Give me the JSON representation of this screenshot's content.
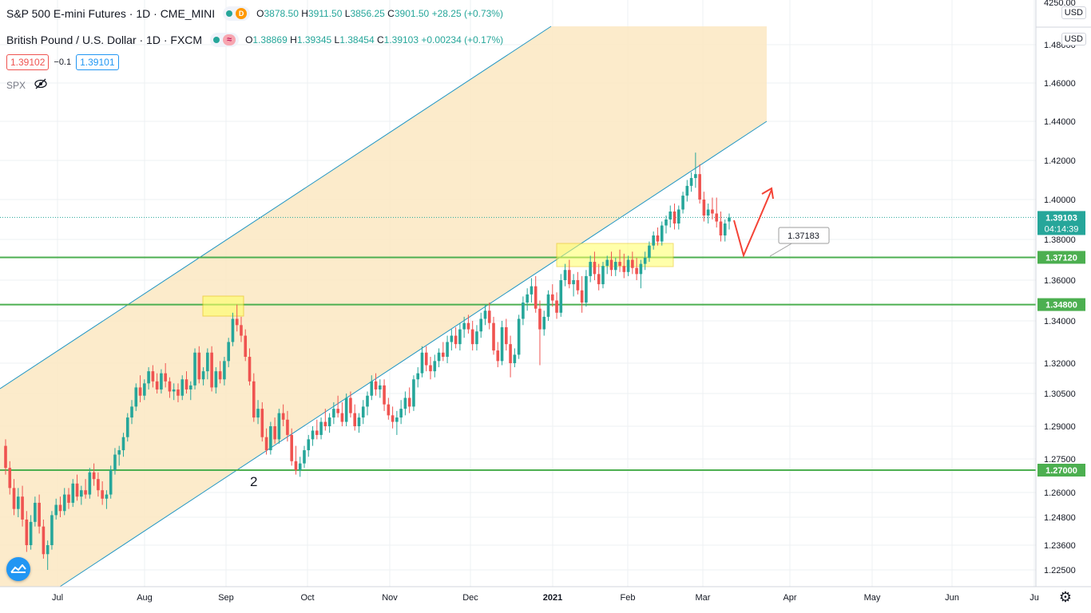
{
  "legend": {
    "row1": {
      "title": "S&P 500 E-mini Futures · 1D · CME_MINI",
      "badge": "D",
      "o_label": "O",
      "o": "3878.50",
      "h_label": "H",
      "h": "3911.50",
      "l_label": "L",
      "l": "3856.25",
      "c_label": "C",
      "c": "3901.50",
      "change": "+28.25 (+0.73%)"
    },
    "row2": {
      "title": "British Pound / U.S. Dollar · 1D · FXCM",
      "badge": "≈",
      "o_label": "O",
      "o": "1.38869",
      "h_label": "H",
      "h": "1.39345",
      "l_label": "L",
      "l": "1.38454",
      "c_label": "C",
      "c": "1.39103",
      "change": "+0.00234 (+0.17%)"
    },
    "sell_price": "1.39102",
    "spread": "−0.1",
    "buy_price": "1.39101",
    "spx_label": "SPX"
  },
  "axis": {
    "currency_top": "USD",
    "currency_main": "USD",
    "top_tick": "4250.00",
    "price_ticks": [
      "1.48000",
      "1.46000",
      "1.44000",
      "1.42000",
      "1.40000",
      "1.38000",
      "1.36000",
      "1.34000",
      "1.32000",
      "1.30500",
      "1.29000",
      "1.27500",
      "1.26000",
      "1.24800",
      "1.23600",
      "1.22500"
    ],
    "time_ticks": [
      "Jul",
      "Aug",
      "Sep",
      "Oct",
      "Nov",
      "Dec",
      "2021",
      "Feb",
      "Mar",
      "Apr",
      "May",
      "Jun",
      "Ju"
    ]
  },
  "chart_data": {
    "type": "candlestick",
    "symbol": "GBPUSD",
    "current_price": "1.39103",
    "countdown": "04:14:39",
    "levels": [
      {
        "value": 1.3712,
        "label": "1.37120",
        "color": "#4caf50"
      },
      {
        "value": 1.348,
        "label": "1.34800",
        "color": "#4caf50"
      },
      {
        "value": 1.27,
        "label": "1.27000",
        "color": "#4caf50"
      }
    ],
    "callout": "1.37183",
    "wave_label": "2",
    "colors": {
      "up": "#26a69a",
      "down": "#ef5350",
      "channel": "#fbe8c2",
      "channel_line": "#2196c4",
      "level": "#4caf50",
      "highlight": "#ffff66",
      "arrow": "#f44336"
    },
    "candles": [
      {
        "o": 1.281,
        "h": 1.284,
        "l": 1.268,
        "c": 1.271
      },
      {
        "o": 1.271,
        "h": 1.274,
        "l": 1.259,
        "c": 1.262
      },
      {
        "o": 1.262,
        "h": 1.266,
        "l": 1.249,
        "c": 1.252
      },
      {
        "o": 1.252,
        "h": 1.262,
        "l": 1.248,
        "c": 1.258
      },
      {
        "o": 1.258,
        "h": 1.263,
        "l": 1.244,
        "c": 1.247
      },
      {
        "o": 1.247,
        "h": 1.251,
        "l": 1.233,
        "c": 1.236
      },
      {
        "o": 1.236,
        "h": 1.249,
        "l": 1.234,
        "c": 1.246
      },
      {
        "o": 1.246,
        "h": 1.258,
        "l": 1.244,
        "c": 1.255
      },
      {
        "o": 1.255,
        "h": 1.259,
        "l": 1.241,
        "c": 1.244
      },
      {
        "o": 1.244,
        "h": 1.247,
        "l": 1.23,
        "c": 1.232
      },
      {
        "o": 1.232,
        "h": 1.238,
        "l": 1.225,
        "c": 1.236
      },
      {
        "o": 1.236,
        "h": 1.251,
        "l": 1.234,
        "c": 1.249
      },
      {
        "o": 1.249,
        "h": 1.257,
        "l": 1.247,
        "c": 1.254
      },
      {
        "o": 1.254,
        "h": 1.258,
        "l": 1.248,
        "c": 1.251
      },
      {
        "o": 1.251,
        "h": 1.262,
        "l": 1.249,
        "c": 1.259
      },
      {
        "o": 1.259,
        "h": 1.262,
        "l": 1.252,
        "c": 1.255
      },
      {
        "o": 1.255,
        "h": 1.266,
        "l": 1.253,
        "c": 1.264
      },
      {
        "o": 1.264,
        "h": 1.268,
        "l": 1.256,
        "c": 1.258
      },
      {
        "o": 1.258,
        "h": 1.263,
        "l": 1.254,
        "c": 1.261
      },
      {
        "o": 1.261,
        "h": 1.266,
        "l": 1.257,
        "c": 1.259
      },
      {
        "o": 1.259,
        "h": 1.271,
        "l": 1.257,
        "c": 1.269
      },
      {
        "o": 1.269,
        "h": 1.273,
        "l": 1.263,
        "c": 1.266
      },
      {
        "o": 1.266,
        "h": 1.269,
        "l": 1.258,
        "c": 1.261
      },
      {
        "o": 1.261,
        "h": 1.265,
        "l": 1.254,
        "c": 1.257
      },
      {
        "o": 1.257,
        "h": 1.261,
        "l": 1.252,
        "c": 1.259
      },
      {
        "o": 1.259,
        "h": 1.272,
        "l": 1.257,
        "c": 1.27
      },
      {
        "o": 1.27,
        "h": 1.28,
        "l": 1.268,
        "c": 1.277
      },
      {
        "o": 1.277,
        "h": 1.281,
        "l": 1.272,
        "c": 1.279
      },
      {
        "o": 1.279,
        "h": 1.287,
        "l": 1.276,
        "c": 1.285
      },
      {
        "o": 1.285,
        "h": 1.296,
        "l": 1.283,
        "c": 1.294
      },
      {
        "o": 1.294,
        "h": 1.302,
        "l": 1.291,
        "c": 1.299
      },
      {
        "o": 1.299,
        "h": 1.31,
        "l": 1.297,
        "c": 1.308
      },
      {
        "o": 1.308,
        "h": 1.314,
        "l": 1.301,
        "c": 1.304
      },
      {
        "o": 1.304,
        "h": 1.312,
        "l": 1.302,
        "c": 1.31
      },
      {
        "o": 1.31,
        "h": 1.318,
        "l": 1.307,
        "c": 1.316
      },
      {
        "o": 1.316,
        "h": 1.319,
        "l": 1.308,
        "c": 1.311
      },
      {
        "o": 1.311,
        "h": 1.315,
        "l": 1.305,
        "c": 1.307
      },
      {
        "o": 1.307,
        "h": 1.317,
        "l": 1.305,
        "c": 1.315
      },
      {
        "o": 1.315,
        "h": 1.32,
        "l": 1.308,
        "c": 1.311
      },
      {
        "o": 1.311,
        "h": 1.313,
        "l": 1.303,
        "c": 1.306
      },
      {
        "o": 1.306,
        "h": 1.31,
        "l": 1.302,
        "c": 1.307
      },
      {
        "o": 1.307,
        "h": 1.31,
        "l": 1.301,
        "c": 1.304
      },
      {
        "o": 1.304,
        "h": 1.314,
        "l": 1.302,
        "c": 1.312
      },
      {
        "o": 1.312,
        "h": 1.316,
        "l": 1.305,
        "c": 1.307
      },
      {
        "o": 1.307,
        "h": 1.311,
        "l": 1.302,
        "c": 1.309
      },
      {
        "o": 1.309,
        "h": 1.327,
        "l": 1.307,
        "c": 1.325
      },
      {
        "o": 1.325,
        "h": 1.328,
        "l": 1.31,
        "c": 1.312
      },
      {
        "o": 1.312,
        "h": 1.318,
        "l": 1.309,
        "c": 1.316
      },
      {
        "o": 1.316,
        "h": 1.327,
        "l": 1.312,
        "c": 1.325
      },
      {
        "o": 1.325,
        "h": 1.328,
        "l": 1.306,
        "c": 1.308
      },
      {
        "o": 1.308,
        "h": 1.318,
        "l": 1.305,
        "c": 1.316
      },
      {
        "o": 1.316,
        "h": 1.321,
        "l": 1.31,
        "c": 1.312
      },
      {
        "o": 1.312,
        "h": 1.323,
        "l": 1.309,
        "c": 1.321
      },
      {
        "o": 1.321,
        "h": 1.332,
        "l": 1.318,
        "c": 1.33
      },
      {
        "o": 1.33,
        "h": 1.344,
        "l": 1.328,
        "c": 1.341
      },
      {
        "o": 1.341,
        "h": 1.348,
        "l": 1.335,
        "c": 1.338
      },
      {
        "o": 1.338,
        "h": 1.342,
        "l": 1.33,
        "c": 1.333
      },
      {
        "o": 1.333,
        "h": 1.336,
        "l": 1.321,
        "c": 1.323
      },
      {
        "o": 1.323,
        "h": 1.327,
        "l": 1.309,
        "c": 1.311
      },
      {
        "o": 1.311,
        "h": 1.315,
        "l": 1.292,
        "c": 1.294
      },
      {
        "o": 1.294,
        "h": 1.302,
        "l": 1.291,
        "c": 1.298
      },
      {
        "o": 1.298,
        "h": 1.301,
        "l": 1.283,
        "c": 1.285
      },
      {
        "o": 1.285,
        "h": 1.289,
        "l": 1.277,
        "c": 1.279
      },
      {
        "o": 1.279,
        "h": 1.292,
        "l": 1.277,
        "c": 1.29
      },
      {
        "o": 1.29,
        "h": 1.294,
        "l": 1.282,
        "c": 1.284
      },
      {
        "o": 1.284,
        "h": 1.298,
        "l": 1.282,
        "c": 1.296
      },
      {
        "o": 1.296,
        "h": 1.3,
        "l": 1.29,
        "c": 1.293
      },
      {
        "o": 1.293,
        "h": 1.297,
        "l": 1.283,
        "c": 1.286
      },
      {
        "o": 1.286,
        "h": 1.289,
        "l": 1.272,
        "c": 1.274
      },
      {
        "o": 1.274,
        "h": 1.281,
        "l": 1.268,
        "c": 1.27
      },
      {
        "o": 1.27,
        "h": 1.276,
        "l": 1.267,
        "c": 1.273
      },
      {
        "o": 1.273,
        "h": 1.281,
        "l": 1.271,
        "c": 1.279
      },
      {
        "o": 1.279,
        "h": 1.286,
        "l": 1.276,
        "c": 1.284
      },
      {
        "o": 1.284,
        "h": 1.29,
        "l": 1.281,
        "c": 1.288
      },
      {
        "o": 1.288,
        "h": 1.293,
        "l": 1.284,
        "c": 1.286
      },
      {
        "o": 1.286,
        "h": 1.294,
        "l": 1.284,
        "c": 1.292
      },
      {
        "o": 1.292,
        "h": 1.298,
        "l": 1.288,
        "c": 1.29
      },
      {
        "o": 1.29,
        "h": 1.296,
        "l": 1.287,
        "c": 1.294
      },
      {
        "o": 1.294,
        "h": 1.301,
        "l": 1.291,
        "c": 1.298
      },
      {
        "o": 1.298,
        "h": 1.304,
        "l": 1.294,
        "c": 1.296
      },
      {
        "o": 1.296,
        "h": 1.301,
        "l": 1.29,
        "c": 1.292
      },
      {
        "o": 1.292,
        "h": 1.305,
        "l": 1.29,
        "c": 1.303
      },
      {
        "o": 1.303,
        "h": 1.306,
        "l": 1.294,
        "c": 1.296
      },
      {
        "o": 1.296,
        "h": 1.3,
        "l": 1.288,
        "c": 1.29
      },
      {
        "o": 1.29,
        "h": 1.296,
        "l": 1.287,
        "c": 1.294
      },
      {
        "o": 1.294,
        "h": 1.302,
        "l": 1.291,
        "c": 1.299
      },
      {
        "o": 1.299,
        "h": 1.306,
        "l": 1.295,
        "c": 1.304
      },
      {
        "o": 1.304,
        "h": 1.314,
        "l": 1.302,
        "c": 1.311
      },
      {
        "o": 1.311,
        "h": 1.315,
        "l": 1.304,
        "c": 1.307
      },
      {
        "o": 1.307,
        "h": 1.312,
        "l": 1.303,
        "c": 1.309
      },
      {
        "o": 1.309,
        "h": 1.312,
        "l": 1.297,
        "c": 1.3
      },
      {
        "o": 1.3,
        "h": 1.303,
        "l": 1.293,
        "c": 1.295
      },
      {
        "o": 1.295,
        "h": 1.299,
        "l": 1.289,
        "c": 1.292
      },
      {
        "o": 1.292,
        "h": 1.297,
        "l": 1.286,
        "c": 1.294
      },
      {
        "o": 1.294,
        "h": 1.302,
        "l": 1.291,
        "c": 1.298
      },
      {
        "o": 1.298,
        "h": 1.306,
        "l": 1.295,
        "c": 1.303
      },
      {
        "o": 1.303,
        "h": 1.308,
        "l": 1.296,
        "c": 1.299
      },
      {
        "o": 1.299,
        "h": 1.314,
        "l": 1.297,
        "c": 1.312
      },
      {
        "o": 1.312,
        "h": 1.318,
        "l": 1.308,
        "c": 1.315
      },
      {
        "o": 1.315,
        "h": 1.328,
        "l": 1.313,
        "c": 1.325
      },
      {
        "o": 1.325,
        "h": 1.328,
        "l": 1.316,
        "c": 1.319
      },
      {
        "o": 1.319,
        "h": 1.323,
        "l": 1.312,
        "c": 1.316
      },
      {
        "o": 1.316,
        "h": 1.324,
        "l": 1.313,
        "c": 1.321
      },
      {
        "o": 1.321,
        "h": 1.327,
        "l": 1.318,
        "c": 1.325
      },
      {
        "o": 1.325,
        "h": 1.33,
        "l": 1.321,
        "c": 1.323
      },
      {
        "o": 1.323,
        "h": 1.333,
        "l": 1.32,
        "c": 1.33
      },
      {
        "o": 1.33,
        "h": 1.336,
        "l": 1.326,
        "c": 1.333
      },
      {
        "o": 1.333,
        "h": 1.337,
        "l": 1.327,
        "c": 1.329
      },
      {
        "o": 1.329,
        "h": 1.339,
        "l": 1.326,
        "c": 1.336
      },
      {
        "o": 1.336,
        "h": 1.342,
        "l": 1.332,
        "c": 1.339
      },
      {
        "o": 1.339,
        "h": 1.343,
        "l": 1.334,
        "c": 1.336
      },
      {
        "o": 1.336,
        "h": 1.34,
        "l": 1.326,
        "c": 1.329
      },
      {
        "o": 1.329,
        "h": 1.338,
        "l": 1.326,
        "c": 1.335
      },
      {
        "o": 1.335,
        "h": 1.344,
        "l": 1.332,
        "c": 1.341
      },
      {
        "o": 1.341,
        "h": 1.348,
        "l": 1.338,
        "c": 1.345
      },
      {
        "o": 1.345,
        "h": 1.349,
        "l": 1.336,
        "c": 1.339
      },
      {
        "o": 1.339,
        "h": 1.342,
        "l": 1.324,
        "c": 1.326
      },
      {
        "o": 1.326,
        "h": 1.33,
        "l": 1.318,
        "c": 1.321
      },
      {
        "o": 1.321,
        "h": 1.34,
        "l": 1.319,
        "c": 1.337
      },
      {
        "o": 1.337,
        "h": 1.341,
        "l": 1.326,
        "c": 1.329
      },
      {
        "o": 1.329,
        "h": 1.333,
        "l": 1.313,
        "c": 1.32
      },
      {
        "o": 1.32,
        "h": 1.327,
        "l": 1.318,
        "c": 1.324
      },
      {
        "o": 1.324,
        "h": 1.343,
        "l": 1.322,
        "c": 1.341
      },
      {
        "o": 1.341,
        "h": 1.352,
        "l": 1.338,
        "c": 1.349
      },
      {
        "o": 1.349,
        "h": 1.356,
        "l": 1.345,
        "c": 1.353
      },
      {
        "o": 1.353,
        "h": 1.361,
        "l": 1.349,
        "c": 1.357
      },
      {
        "o": 1.357,
        "h": 1.362,
        "l": 1.344,
        "c": 1.346
      },
      {
        "o": 1.346,
        "h": 1.35,
        "l": 1.319,
        "c": 1.336
      },
      {
        "o": 1.336,
        "h": 1.345,
        "l": 1.333,
        "c": 1.342
      },
      {
        "o": 1.342,
        "h": 1.355,
        "l": 1.34,
        "c": 1.353
      },
      {
        "o": 1.353,
        "h": 1.358,
        "l": 1.347,
        "c": 1.35
      },
      {
        "o": 1.35,
        "h": 1.354,
        "l": 1.341,
        "c": 1.344
      },
      {
        "o": 1.344,
        "h": 1.363,
        "l": 1.342,
        "c": 1.36
      },
      {
        "o": 1.36,
        "h": 1.368,
        "l": 1.357,
        "c": 1.365
      },
      {
        "o": 1.365,
        "h": 1.37,
        "l": 1.356,
        "c": 1.358
      },
      {
        "o": 1.358,
        "h": 1.363,
        "l": 1.352,
        "c": 1.36
      },
      {
        "o": 1.36,
        "h": 1.364,
        "l": 1.353,
        "c": 1.355
      },
      {
        "o": 1.355,
        "h": 1.362,
        "l": 1.344,
        "c": 1.349
      },
      {
        "o": 1.349,
        "h": 1.365,
        "l": 1.347,
        "c": 1.362
      },
      {
        "o": 1.362,
        "h": 1.372,
        "l": 1.359,
        "c": 1.369
      },
      {
        "o": 1.369,
        "h": 1.374,
        "l": 1.36,
        "c": 1.363
      },
      {
        "o": 1.363,
        "h": 1.368,
        "l": 1.355,
        "c": 1.358
      },
      {
        "o": 1.358,
        "h": 1.369,
        "l": 1.356,
        "c": 1.367
      },
      {
        "o": 1.367,
        "h": 1.372,
        "l": 1.363,
        "c": 1.37
      },
      {
        "o": 1.37,
        "h": 1.374,
        "l": 1.362,
        "c": 1.365
      },
      {
        "o": 1.365,
        "h": 1.371,
        "l": 1.362,
        "c": 1.369
      },
      {
        "o": 1.369,
        "h": 1.375,
        "l": 1.364,
        "c": 1.367
      },
      {
        "o": 1.367,
        "h": 1.373,
        "l": 1.361,
        "c": 1.364
      },
      {
        "o": 1.364,
        "h": 1.372,
        "l": 1.362,
        "c": 1.37
      },
      {
        "o": 1.37,
        "h": 1.374,
        "l": 1.363,
        "c": 1.366
      },
      {
        "o": 1.366,
        "h": 1.371,
        "l": 1.36,
        "c": 1.363
      },
      {
        "o": 1.363,
        "h": 1.37,
        "l": 1.356,
        "c": 1.368
      },
      {
        "o": 1.368,
        "h": 1.374,
        "l": 1.365,
        "c": 1.371
      },
      {
        "o": 1.371,
        "h": 1.379,
        "l": 1.369,
        "c": 1.377
      },
      {
        "o": 1.377,
        "h": 1.384,
        "l": 1.375,
        "c": 1.382
      },
      {
        "o": 1.382,
        "h": 1.386,
        "l": 1.377,
        "c": 1.379
      },
      {
        "o": 1.379,
        "h": 1.389,
        "l": 1.377,
        "c": 1.387
      },
      {
        "o": 1.387,
        "h": 1.392,
        "l": 1.383,
        "c": 1.39
      },
      {
        "o": 1.39,
        "h": 1.397,
        "l": 1.386,
        "c": 1.394
      },
      {
        "o": 1.394,
        "h": 1.398,
        "l": 1.385,
        "c": 1.388
      },
      {
        "o": 1.388,
        "h": 1.397,
        "l": 1.385,
        "c": 1.395
      },
      {
        "o": 1.395,
        "h": 1.404,
        "l": 1.393,
        "c": 1.402
      },
      {
        "o": 1.402,
        "h": 1.41,
        "l": 1.399,
        "c": 1.407
      },
      {
        "o": 1.407,
        "h": 1.414,
        "l": 1.404,
        "c": 1.411
      },
      {
        "o": 1.411,
        "h": 1.424,
        "l": 1.406,
        "c": 1.413
      },
      {
        "o": 1.413,
        "h": 1.418,
        "l": 1.398,
        "c": 1.4
      },
      {
        "o": 1.4,
        "h": 1.404,
        "l": 1.389,
        "c": 1.392
      },
      {
        "o": 1.392,
        "h": 1.398,
        "l": 1.388,
        "c": 1.395
      },
      {
        "o": 1.395,
        "h": 1.401,
        "l": 1.39,
        "c": 1.393
      },
      {
        "o": 1.393,
        "h": 1.401,
        "l": 1.386,
        "c": 1.389
      },
      {
        "o": 1.389,
        "h": 1.394,
        "l": 1.379,
        "c": 1.382
      },
      {
        "o": 1.382,
        "h": 1.39,
        "l": 1.379,
        "c": 1.388
      },
      {
        "o": 1.389,
        "h": 1.393,
        "l": 1.385,
        "c": 1.391
      }
    ]
  }
}
